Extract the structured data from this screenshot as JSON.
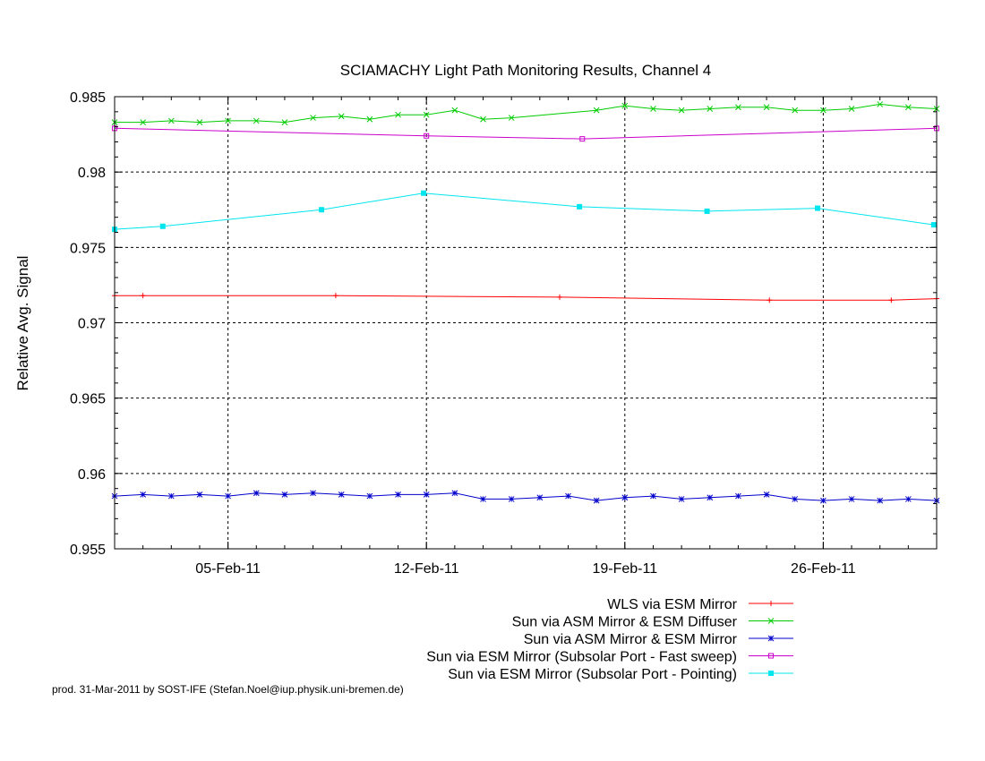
{
  "chart_data": {
    "type": "line",
    "title": "SCIAMACHY Light Path Monitoring Results, Channel 4",
    "ylabel": "Relative Avg. Signal",
    "xlabel": "",
    "x_range": [
      "2011-02-01",
      "2011-03-02"
    ],
    "ylim": [
      0.955,
      0.985
    ],
    "y_ticks": [
      "0.955",
      "0.96",
      "0.965",
      "0.97",
      "0.975",
      "0.98",
      "0.985"
    ],
    "x_ticks": [
      {
        "date": "2011-02-05",
        "label": "05-Feb-11"
      },
      {
        "date": "2011-02-12",
        "label": "12-Feb-11"
      },
      {
        "date": "2011-02-19",
        "label": "19-Feb-11"
      },
      {
        "date": "2011-02-26",
        "label": "26-Feb-11"
      }
    ],
    "grid": true,
    "legend_position": "below",
    "series": [
      {
        "name": "WLS via ESM Mirror",
        "color": "#ff0000",
        "marker": "plus",
        "points": [
          [
            "2011-02-01",
            0.9718
          ],
          [
            "2011-02-02",
            0.9718
          ],
          [
            "2011-02-08.8",
            0.9718
          ],
          [
            "2011-02-16.7",
            0.9717
          ],
          [
            "2011-02-24.1",
            0.9715
          ],
          [
            "2011-02-28.4",
            0.9715
          ],
          [
            "2011-03-02",
            0.9716
          ]
        ]
      },
      {
        "name": "Sun via ASM Mirror & ESM Diffuser",
        "color": "#00cc00",
        "marker": "cross",
        "points": [
          [
            "2011-02-01",
            0.9833
          ],
          [
            "2011-02-02",
            0.9833
          ],
          [
            "2011-02-03",
            0.9834
          ],
          [
            "2011-02-04",
            0.9833
          ],
          [
            "2011-02-05",
            0.9834
          ],
          [
            "2011-02-06",
            0.9834
          ],
          [
            "2011-02-07",
            0.9833
          ],
          [
            "2011-02-08",
            0.9836
          ],
          [
            "2011-02-09",
            0.9837
          ],
          [
            "2011-02-10",
            0.9835
          ],
          [
            "2011-02-11",
            0.9838
          ],
          [
            "2011-02-12",
            0.9838
          ],
          [
            "2011-02-13",
            0.9841
          ],
          [
            "2011-02-14",
            0.9835
          ],
          [
            "2011-02-15",
            0.9836
          ],
          [
            "2011-02-18",
            0.9841
          ],
          [
            "2011-02-19",
            0.9844
          ],
          [
            "2011-02-20",
            0.9842
          ],
          [
            "2011-02-21",
            0.9841
          ],
          [
            "2011-02-22",
            0.9842
          ],
          [
            "2011-02-23",
            0.9843
          ],
          [
            "2011-02-24",
            0.9843
          ],
          [
            "2011-02-25",
            0.9841
          ],
          [
            "2011-02-26",
            0.9841
          ],
          [
            "2011-02-27",
            0.9842
          ],
          [
            "2011-02-28",
            0.9845
          ],
          [
            "2011-03-01",
            0.9843
          ],
          [
            "2011-03-02",
            0.9842
          ]
        ]
      },
      {
        "name": "Sun via ASM Mirror & ESM Mirror",
        "color": "#0000cc",
        "marker": "star",
        "points": [
          [
            "2011-02-01",
            0.9585
          ],
          [
            "2011-02-02",
            0.9586
          ],
          [
            "2011-02-03",
            0.9585
          ],
          [
            "2011-02-04",
            0.9586
          ],
          [
            "2011-02-05",
            0.9585
          ],
          [
            "2011-02-06",
            0.9587
          ],
          [
            "2011-02-07",
            0.9586
          ],
          [
            "2011-02-08",
            0.9587
          ],
          [
            "2011-02-09",
            0.9586
          ],
          [
            "2011-02-10",
            0.9585
          ],
          [
            "2011-02-11",
            0.9586
          ],
          [
            "2011-02-12",
            0.9586
          ],
          [
            "2011-02-13",
            0.9587
          ],
          [
            "2011-02-14",
            0.9583
          ],
          [
            "2011-02-15",
            0.9583
          ],
          [
            "2011-02-16",
            0.9584
          ],
          [
            "2011-02-17",
            0.9585
          ],
          [
            "2011-02-18",
            0.9582
          ],
          [
            "2011-02-19",
            0.9584
          ],
          [
            "2011-02-20",
            0.9585
          ],
          [
            "2011-02-21",
            0.9583
          ],
          [
            "2011-02-22",
            0.9584
          ],
          [
            "2011-02-23",
            0.9585
          ],
          [
            "2011-02-24",
            0.9586
          ],
          [
            "2011-02-25",
            0.9583
          ],
          [
            "2011-02-26",
            0.9582
          ],
          [
            "2011-02-27",
            0.9583
          ],
          [
            "2011-02-28",
            0.9582
          ],
          [
            "2011-03-01",
            0.9583
          ],
          [
            "2011-03-02",
            0.9582
          ]
        ]
      },
      {
        "name": "Sun via ESM Mirror (Subsolar Port - Fast sweep)",
        "color": "#cc00cc",
        "marker": "open-square",
        "points": [
          [
            "2011-02-01",
            0.9829
          ],
          [
            "2011-02-12",
            0.9824
          ],
          [
            "2011-02-17.5",
            0.9822
          ],
          [
            "2011-03-02",
            0.9829
          ]
        ]
      },
      {
        "name": "Sun via ESM Mirror (Subsolar Port - Pointing)",
        "color": "#00e5ee",
        "marker": "filled-square",
        "points": [
          [
            "2011-02-01",
            0.9762
          ],
          [
            "2011-02-02.7",
            0.9764
          ],
          [
            "2011-02-08.3",
            0.9775
          ],
          [
            "2011-02-11.9",
            0.9786
          ],
          [
            "2011-02-17.4",
            0.9777
          ],
          [
            "2011-02-21.9",
            0.9774
          ],
          [
            "2011-02-25.8",
            0.9776
          ],
          [
            "2011-03-01.9",
            0.9765
          ]
        ]
      }
    ]
  },
  "footer_text": "prod. 31-Mar-2011 by SOST-IFE (Stefan.Noel@iup.physik.uni-bremen.de)"
}
